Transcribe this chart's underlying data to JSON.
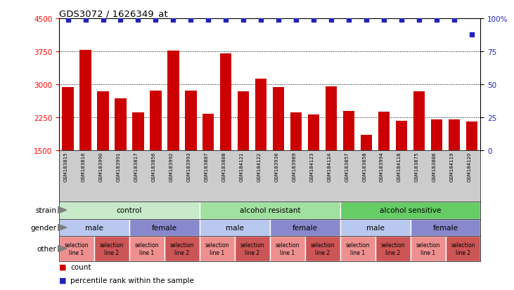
{
  "title": "GDS3072 / 1626349_at",
  "samples": [
    "GSM183815",
    "GSM183816",
    "GSM183990",
    "GSM183991",
    "GSM183817",
    "GSM183856",
    "GSM183992",
    "GSM183993",
    "GSM183887",
    "GSM183888",
    "GSM184121",
    "GSM184122",
    "GSM183936",
    "GSM183989",
    "GSM184123",
    "GSM184124",
    "GSM183857",
    "GSM183858",
    "GSM183994",
    "GSM184118",
    "GSM183875",
    "GSM183886",
    "GSM184119",
    "GSM184120"
  ],
  "counts": [
    2930,
    3780,
    2840,
    2690,
    2360,
    2860,
    3770,
    2860,
    2340,
    3700,
    2840,
    3130,
    2940,
    2360,
    2310,
    2950,
    2390,
    1860,
    2380,
    2170,
    2850,
    2210,
    2200,
    2160
  ],
  "percentiles": [
    99,
    99,
    99,
    99,
    99,
    99,
    99,
    99,
    99,
    99,
    99,
    99,
    99,
    99,
    99,
    99,
    99,
    99,
    99,
    99,
    99,
    99,
    99,
    88
  ],
  "bar_color": "#cc0000",
  "dot_color": "#2222bb",
  "ylim_left": [
    1500,
    4500
  ],
  "ylim_right": [
    0,
    100
  ],
  "yticks_left": [
    1500,
    2250,
    3000,
    3750,
    4500
  ],
  "yticks_right": [
    0,
    25,
    50,
    75,
    100
  ],
  "grid_values": [
    2250,
    3000,
    3750
  ],
  "strain_groups": [
    {
      "label": "control",
      "start": 0,
      "end": 8,
      "color": "#c8eac8"
    },
    {
      "label": "alcohol resistant",
      "start": 8,
      "end": 16,
      "color": "#a0e0a0"
    },
    {
      "label": "alcohol sensitive",
      "start": 16,
      "end": 24,
      "color": "#66cc66"
    }
  ],
  "gender_groups": [
    {
      "label": "male",
      "start": 0,
      "end": 4,
      "color": "#b8c8ee"
    },
    {
      "label": "female",
      "start": 4,
      "end": 8,
      "color": "#8888cc"
    },
    {
      "label": "male",
      "start": 8,
      "end": 12,
      "color": "#b8c8ee"
    },
    {
      "label": "female",
      "start": 12,
      "end": 16,
      "color": "#8888cc"
    },
    {
      "label": "male",
      "start": 16,
      "end": 20,
      "color": "#b8c8ee"
    },
    {
      "label": "female",
      "start": 20,
      "end": 24,
      "color": "#8888cc"
    }
  ],
  "other_groups": [
    {
      "label": "selection\nline 1",
      "start": 0,
      "end": 2,
      "color": "#ee9090"
    },
    {
      "label": "selection\nline 2",
      "start": 2,
      "end": 4,
      "color": "#cc5555"
    },
    {
      "label": "selection\nline 1",
      "start": 4,
      "end": 6,
      "color": "#ee9090"
    },
    {
      "label": "selection\nline 2",
      "start": 6,
      "end": 8,
      "color": "#cc5555"
    },
    {
      "label": "selection\nline 1",
      "start": 8,
      "end": 10,
      "color": "#ee9090"
    },
    {
      "label": "selection\nline 2",
      "start": 10,
      "end": 12,
      "color": "#cc5555"
    },
    {
      "label": "selection\nline 1",
      "start": 12,
      "end": 14,
      "color": "#ee9090"
    },
    {
      "label": "selection\nline 2",
      "start": 14,
      "end": 16,
      "color": "#cc5555"
    },
    {
      "label": "selection\nline 1",
      "start": 16,
      "end": 18,
      "color": "#ee9090"
    },
    {
      "label": "selection\nline 2",
      "start": 18,
      "end": 20,
      "color": "#cc5555"
    },
    {
      "label": "selection\nline 1",
      "start": 20,
      "end": 22,
      "color": "#ee9090"
    },
    {
      "label": "selection\nline 2",
      "start": 22,
      "end": 24,
      "color": "#cc5555"
    }
  ],
  "row_labels": [
    "strain",
    "gender",
    "other"
  ],
  "legend_items": [
    {
      "label": "count",
      "color": "#cc0000"
    },
    {
      "label": "percentile rank within the sample",
      "color": "#2222bb"
    }
  ],
  "names_bg_color": "#cccccc"
}
